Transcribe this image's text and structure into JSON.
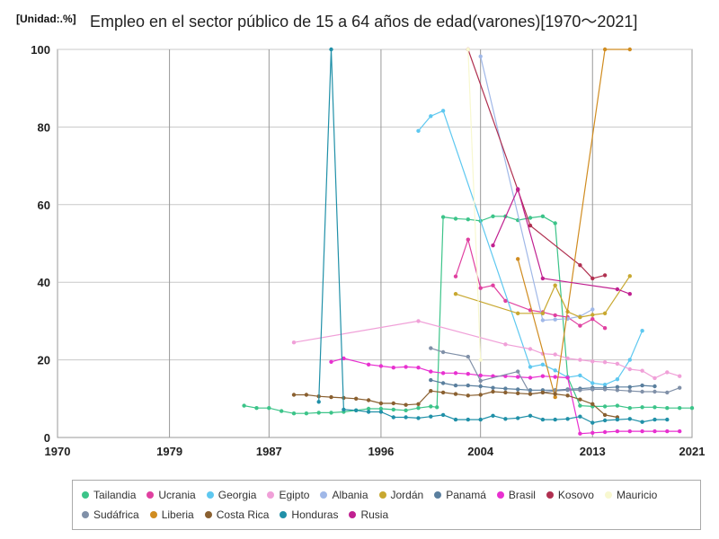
{
  "header": {
    "unit": "[Unidad:.%]",
    "title": "Empleo en el sector público de 15 a 64 años de edad(varones)[1970〜2021]"
  },
  "chart_data": {
    "type": "line",
    "xlim": [
      1970,
      2021
    ],
    "ylim": [
      0,
      100
    ],
    "x_ticks": [
      "1970",
      "1979",
      "1987",
      "1996",
      "2004",
      "2013",
      "2021"
    ],
    "y_ticks": [
      "0",
      "20",
      "40",
      "60",
      "80",
      "100"
    ],
    "grid": true,
    "legend_position": "bottom",
    "series": [
      {
        "name": "Tailandia",
        "color": "#3cc489",
        "points": [
          [
            1985,
            8.2
          ],
          [
            1986,
            7.6
          ],
          [
            1987,
            7.6
          ],
          [
            1988,
            6.8
          ],
          [
            1989,
            6.2
          ],
          [
            1990,
            6.2
          ],
          [
            1991,
            6.4
          ],
          [
            1992,
            6.4
          ],
          [
            1993,
            6.6
          ],
          [
            1994,
            7.0
          ],
          [
            1995,
            7.4
          ],
          [
            1996,
            7.4
          ],
          [
            1997,
            7.2
          ],
          [
            1998,
            7.0
          ],
          [
            1999,
            7.6
          ],
          [
            2000,
            8.0
          ],
          [
            2000.5,
            7.8
          ],
          [
            2001,
            56.8
          ],
          [
            2002,
            56.4
          ],
          [
            2003,
            56.2
          ],
          [
            2004,
            55.8
          ],
          [
            2005,
            57.0
          ],
          [
            2006,
            57.0
          ],
          [
            2007,
            56.0
          ],
          [
            2008,
            56.6
          ],
          [
            2009,
            57.0
          ],
          [
            2010,
            55.2
          ],
          [
            2011,
            15.6
          ],
          [
            2012,
            8.2
          ],
          [
            2013,
            8.0
          ],
          [
            2014,
            8.0
          ],
          [
            2015,
            8.2
          ],
          [
            2016,
            7.6
          ],
          [
            2017,
            7.8
          ],
          [
            2018,
            7.8
          ],
          [
            2019,
            7.6
          ],
          [
            2020,
            7.6
          ],
          [
            2021,
            7.6
          ]
        ]
      },
      {
        "name": "Ucrania",
        "color": "#e040a0",
        "points": [
          [
            2002,
            41.5
          ],
          [
            2003,
            51.0
          ],
          [
            2004,
            38.5
          ],
          [
            2005,
            39.2
          ],
          [
            2006,
            35.2
          ],
          [
            2008,
            32.8
          ],
          [
            2009,
            32.3
          ],
          [
            2010,
            31.5
          ],
          [
            2011,
            31.0
          ],
          [
            2012,
            28.8
          ],
          [
            2013,
            30.5
          ],
          [
            2014,
            28.2
          ]
        ]
      },
      {
        "name": "Georgia",
        "color": "#5ec8f0",
        "points": [
          [
            1999,
            79.0
          ],
          [
            2000,
            82.8
          ],
          [
            2001,
            84.2
          ],
          [
            2008,
            18.2
          ],
          [
            2009,
            18.8
          ],
          [
            2010,
            17.3
          ],
          [
            2011,
            15.5
          ],
          [
            2012,
            16.0
          ],
          [
            2013,
            14.0
          ],
          [
            2014,
            13.6
          ],
          [
            2015,
            15.0
          ],
          [
            2016,
            20.0
          ],
          [
            2017,
            27.5
          ]
        ]
      },
      {
        "name": "Egipto",
        "color": "#f0a0d8",
        "points": [
          [
            1989,
            24.5
          ],
          [
            1999,
            30.0
          ],
          [
            2006,
            24.0
          ],
          [
            2008,
            22.8
          ],
          [
            2009,
            21.6
          ],
          [
            2010,
            21.4
          ],
          [
            2011,
            20.4
          ],
          [
            2012,
            20.0
          ],
          [
            2013,
            19.6
          ],
          [
            2014,
            19.4
          ],
          [
            2015,
            19.0
          ],
          [
            2016,
            17.6
          ],
          [
            2017,
            17.2
          ],
          [
            2018,
            15.3
          ],
          [
            2019,
            16.8
          ],
          [
            2020,
            15.8
          ]
        ]
      },
      {
        "name": "Albania",
        "color": "#a0b8e8",
        "points": [
          [
            2004,
            98.2
          ],
          [
            2009,
            30.2
          ],
          [
            2010,
            30.4
          ],
          [
            2011,
            30.6
          ],
          [
            2012,
            31.2
          ],
          [
            2013,
            33.0
          ]
        ]
      },
      {
        "name": "Jordán",
        "color": "#c8a830",
        "points": [
          [
            2002,
            37.0
          ],
          [
            2007,
            32.0
          ],
          [
            2009,
            32.0
          ],
          [
            2010,
            39.2
          ],
          [
            2011,
            32.4
          ],
          [
            2012,
            31.0
          ],
          [
            2013,
            31.6
          ],
          [
            2014,
            32.0
          ],
          [
            2016,
            41.6
          ]
        ]
      },
      {
        "name": "Panamá",
        "color": "#5a7f9e",
        "points": [
          [
            2000,
            14.8
          ],
          [
            2001,
            14.0
          ],
          [
            2002,
            13.4
          ],
          [
            2003,
            13.4
          ],
          [
            2004,
            13.2
          ],
          [
            2005,
            12.8
          ],
          [
            2006,
            12.6
          ],
          [
            2007,
            12.4
          ],
          [
            2008,
            12.2
          ],
          [
            2009,
            12.2
          ],
          [
            2010,
            12.2
          ],
          [
            2011,
            12.4
          ],
          [
            2012,
            12.6
          ],
          [
            2013,
            12.8
          ],
          [
            2014,
            12.8
          ],
          [
            2015,
            13.0
          ],
          [
            2016,
            13.0
          ],
          [
            2017,
            13.4
          ],
          [
            2018,
            13.2
          ]
        ]
      },
      {
        "name": "Brasil",
        "color": "#e830d0",
        "points": [
          [
            1992,
            19.5
          ],
          [
            1993,
            20.4
          ],
          [
            1995,
            18.8
          ],
          [
            1996,
            18.4
          ],
          [
            1997,
            18.0
          ],
          [
            1998,
            18.2
          ],
          [
            1999,
            18.0
          ],
          [
            2000,
            17.0
          ],
          [
            2001,
            16.6
          ],
          [
            2002,
            16.6
          ],
          [
            2003,
            16.4
          ],
          [
            2004,
            16.0
          ],
          [
            2005,
            15.8
          ],
          [
            2006,
            15.8
          ],
          [
            2007,
            15.6
          ],
          [
            2008,
            15.4
          ],
          [
            2009,
            15.8
          ],
          [
            2010,
            15.6
          ],
          [
            2011,
            15.4
          ],
          [
            2012,
            1.0
          ],
          [
            2013,
            1.2
          ],
          [
            2014,
            1.4
          ],
          [
            2015,
            1.6
          ],
          [
            2016,
            1.6
          ],
          [
            2017,
            1.6
          ],
          [
            2018,
            1.6
          ],
          [
            2019,
            1.6
          ],
          [
            2020,
            1.6
          ]
        ]
      },
      {
        "name": "Kosovo",
        "color": "#b03050",
        "points": [
          [
            2003,
            100.0
          ],
          [
            2007,
            63.8
          ],
          [
            2008,
            54.6
          ],
          [
            2012,
            44.4
          ],
          [
            2013,
            41.0
          ],
          [
            2014,
            41.8
          ]
        ]
      },
      {
        "name": "Mauricio",
        "color": "#f8f8d0",
        "points": [
          [
            2003,
            100.0
          ],
          [
            2004,
            20.0
          ]
        ]
      },
      {
        "name": "Sudáfrica",
        "color": "#8090a8",
        "points": [
          [
            2000,
            23.0
          ],
          [
            2001,
            22.0
          ],
          [
            2003,
            20.8
          ],
          [
            2004,
            14.6
          ],
          [
            2007,
            17.0
          ],
          [
            2008,
            11.2
          ],
          [
            2009,
            11.6
          ],
          [
            2010,
            12.0
          ],
          [
            2011,
            12.2
          ],
          [
            2012,
            12.2
          ],
          [
            2013,
            12.4
          ],
          [
            2014,
            12.4
          ],
          [
            2015,
            12.2
          ],
          [
            2016,
            12.0
          ],
          [
            2017,
            11.8
          ],
          [
            2018,
            11.8
          ],
          [
            2019,
            11.6
          ],
          [
            2020,
            12.8
          ]
        ]
      },
      {
        "name": "Liberia",
        "color": "#d08c20",
        "points": [
          [
            2007,
            46.0
          ],
          [
            2010,
            10.4
          ],
          [
            2014,
            100.0
          ],
          [
            2016,
            100.0
          ]
        ]
      },
      {
        "name": "Costa Rica",
        "color": "#8a6030",
        "points": [
          [
            1989,
            11.0
          ],
          [
            1990,
            11.0
          ],
          [
            1991,
            10.6
          ],
          [
            1992,
            10.4
          ],
          [
            1993,
            10.2
          ],
          [
            1994,
            10.0
          ],
          [
            1995,
            9.6
          ],
          [
            1996,
            8.8
          ],
          [
            1997,
            8.8
          ],
          [
            1998,
            8.4
          ],
          [
            1999,
            8.6
          ],
          [
            2000,
            12.0
          ],
          [
            2001,
            11.6
          ],
          [
            2002,
            11.2
          ],
          [
            2003,
            10.8
          ],
          [
            2004,
            11.0
          ],
          [
            2005,
            11.8
          ],
          [
            2006,
            11.6
          ],
          [
            2007,
            11.4
          ],
          [
            2008,
            11.2
          ],
          [
            2009,
            11.6
          ],
          [
            2010,
            11.2
          ],
          [
            2011,
            10.8
          ],
          [
            2012,
            9.8
          ],
          [
            2013,
            8.6
          ],
          [
            2014,
            5.8
          ],
          [
            2015,
            5.2
          ]
        ]
      },
      {
        "name": "Honduras",
        "color": "#2090a8",
        "points": [
          [
            1991,
            9.2
          ],
          [
            1992,
            100.0
          ],
          [
            1993,
            7.2
          ],
          [
            1994,
            7.0
          ],
          [
            1995,
            6.6
          ],
          [
            1996,
            6.6
          ],
          [
            1997,
            5.2
          ],
          [
            1998,
            5.2
          ],
          [
            1999,
            5.0
          ],
          [
            2000,
            5.4
          ],
          [
            2001,
            5.8
          ],
          [
            2002,
            4.6
          ],
          [
            2003,
            4.6
          ],
          [
            2004,
            4.6
          ],
          [
            2005,
            5.6
          ],
          [
            2006,
            4.8
          ],
          [
            2007,
            5.0
          ],
          [
            2008,
            5.6
          ],
          [
            2009,
            4.6
          ],
          [
            2010,
            4.6
          ],
          [
            2011,
            4.8
          ],
          [
            2012,
            5.4
          ],
          [
            2013,
            3.8
          ],
          [
            2014,
            4.4
          ],
          [
            2015,
            4.6
          ],
          [
            2016,
            4.8
          ],
          [
            2017,
            4.0
          ],
          [
            2018,
            4.6
          ],
          [
            2019,
            4.6
          ]
        ]
      },
      {
        "name": "Rusia",
        "color": "#c02090",
        "points": [
          [
            2005,
            49.5
          ],
          [
            2007,
            64.0
          ],
          [
            2009,
            41.0
          ],
          [
            2015,
            38.2
          ],
          [
            2016,
            37.0
          ]
        ]
      }
    ]
  }
}
